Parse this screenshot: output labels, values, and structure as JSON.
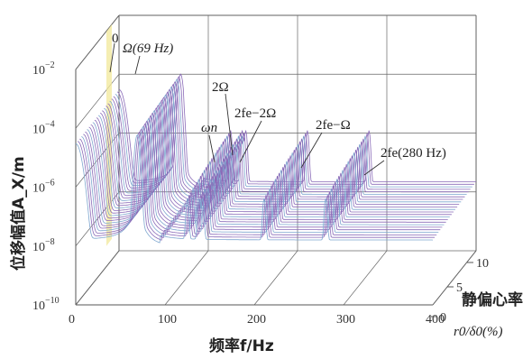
{
  "chart_data": {
    "type": "line",
    "subtype": "3d-waterfall-spectrum",
    "xlabel": "频率f/Hz",
    "ylabel": "位移幅值A_X/m",
    "zlabel_cn": "静偏心率",
    "zlabel": "r0/δ0(%)",
    "xlim": [
      0,
      400
    ],
    "ylim": [
      1e-10,
      0.01
    ],
    "yscale": "log",
    "zlim": [
      0,
      10
    ],
    "x_ticks": [
      "0",
      "100",
      "200",
      "300",
      "400"
    ],
    "y_ticks": [
      {
        "base": "10",
        "exp": "−10",
        "value": 1e-10
      },
      {
        "base": "10",
        "exp": "−8",
        "value": 1e-08
      },
      {
        "base": "10",
        "exp": "−6",
        "value": 1e-06
      },
      {
        "base": "10",
        "exp": "−4",
        "value": 0.0001
      },
      {
        "base": "10",
        "exp": "−2",
        "value": 0.01
      }
    ],
    "z_ticks": [
      "0",
      "5",
      "10"
    ],
    "grid": true,
    "line_color": "#8a6bb8",
    "low_freq_color": "#7ea6cf",
    "highlight_color": "#f2e89a",
    "peaks": [
      {
        "label": "Ω(69 Hz)",
        "freq": 69,
        "amplitude": 0.0001
      },
      {
        "label": "ωn",
        "freq": 125,
        "amplitude": 1e-06
      },
      {
        "label": "2Ω",
        "freq": 138,
        "amplitude": 1e-06
      },
      {
        "label": "2fe−2Ω",
        "freq": 142,
        "amplitude": 1e-06
      },
      {
        "label": "2fe−Ω",
        "freq": 211,
        "amplitude": 1e-06
      },
      {
        "label": "2fe(280 Hz)",
        "freq": 280,
        "amplitude": 1e-06
      }
    ],
    "annotations": [
      {
        "text": "0",
        "target": "0 Hz peak"
      },
      {
        "text": "Ω(69 Hz)",
        "target": "Ω peak"
      },
      {
        "text": "2Ω",
        "target": "2Ω peak"
      },
      {
        "text": "ωn",
        "target": "natural frequency peak"
      },
      {
        "text": "2fe−2Ω",
        "target": "2fe−2Ω peak"
      },
      {
        "text": "2fe−Ω",
        "target": "2fe−Ω peak"
      },
      {
        "text": "2fe(280 Hz)",
        "target": "2fe peak"
      }
    ]
  }
}
